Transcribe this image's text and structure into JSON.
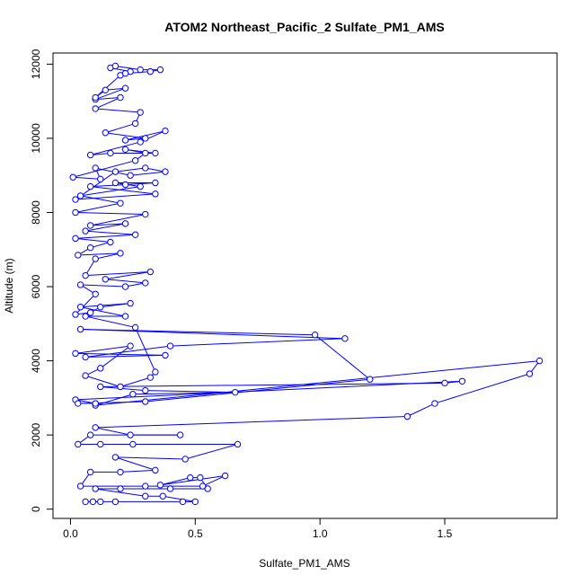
{
  "chart_data": {
    "type": "line",
    "title": "ATOM2 Northeast_Pacific_2 Sulfate_PM1_AMS",
    "xlabel": "Sulfate_PM1_AMS",
    "ylabel": "Altitude (m)",
    "xlim": [
      -0.07,
      1.95
    ],
    "ylim": [
      -250,
      12300
    ],
    "x_ticks": [
      0.0,
      0.5,
      1.0,
      1.5
    ],
    "x_tick_labels": [
      "0.0",
      "0.5",
      "1.0",
      "1.5"
    ],
    "y_ticks": [
      0,
      2000,
      4000,
      6000,
      8000,
      10000,
      12000
    ],
    "y_tick_labels": [
      "0",
      "2000",
      "4000",
      "6000",
      "8000",
      "10000",
      "12000"
    ],
    "grid": false,
    "colors": {
      "series": "#0000ff",
      "axes": "#000000",
      "background": "#ffffff"
    },
    "series": [
      {
        "marker": "open-circle",
        "line": true,
        "points": [
          [
            0.06,
            200
          ],
          [
            0.09,
            200
          ],
          [
            0.12,
            200
          ],
          [
            0.18,
            200
          ],
          [
            0.45,
            200
          ],
          [
            0.5,
            200
          ],
          [
            0.37,
            350
          ],
          [
            0.3,
            350
          ],
          [
            0.1,
            550
          ],
          [
            0.2,
            550
          ],
          [
            0.4,
            550
          ],
          [
            0.55,
            550
          ],
          [
            0.52,
            850
          ],
          [
            0.48,
            850
          ],
          [
            0.36,
            650
          ],
          [
            0.62,
            900
          ],
          [
            0.53,
            620
          ],
          [
            0.3,
            620
          ],
          [
            0.04,
            620
          ],
          [
            0.08,
            1000
          ],
          [
            0.2,
            1000
          ],
          [
            0.34,
            1050
          ],
          [
            0.18,
            1400
          ],
          [
            0.46,
            1350
          ],
          [
            0.67,
            1750
          ],
          [
            0.25,
            1750
          ],
          [
            0.12,
            1750
          ],
          [
            0.03,
            1750
          ],
          [
            0.08,
            2000
          ],
          [
            0.44,
            2000
          ],
          [
            0.24,
            2000
          ],
          [
            0.1,
            2200
          ],
          [
            1.35,
            2500
          ],
          [
            1.46,
            2850
          ],
          [
            1.84,
            3650
          ],
          [
            1.88,
            4000
          ],
          [
            0.1,
            2800
          ],
          [
            0.25,
            3100
          ],
          [
            0.66,
            3150
          ],
          [
            0.3,
            3200
          ],
          [
            0.12,
            3300
          ],
          [
            1.5,
            3400
          ],
          [
            1.57,
            3450
          ],
          [
            0.02,
            2950
          ],
          [
            0.1,
            2850
          ],
          [
            0.03,
            2850
          ],
          [
            0.3,
            2900
          ],
          [
            1.2,
            3500
          ],
          [
            0.98,
            4700
          ],
          [
            0.04,
            4850
          ],
          [
            1.1,
            4600
          ],
          [
            0.4,
            4400
          ],
          [
            0.06,
            4100
          ],
          [
            0.38,
            4150
          ],
          [
            0.02,
            4200
          ],
          [
            0.24,
            4400
          ],
          [
            0.12,
            3800
          ],
          [
            0.06,
            3600
          ],
          [
            0.2,
            3300
          ],
          [
            0.32,
            3550
          ],
          [
            0.34,
            3700
          ],
          [
            0.26,
            4900
          ],
          [
            0.06,
            5200
          ],
          [
            0.22,
            5200
          ],
          [
            0.04,
            5450
          ],
          [
            0.24,
            5550
          ],
          [
            0.12,
            5450
          ],
          [
            0.08,
            5300
          ],
          [
            0.02,
            5250
          ],
          [
            0.1,
            5800
          ],
          [
            0.04,
            6050
          ],
          [
            0.22,
            6000
          ],
          [
            0.3,
            6100
          ],
          [
            0.14,
            6200
          ],
          [
            0.32,
            6400
          ],
          [
            0.06,
            6300
          ],
          [
            0.1,
            6750
          ],
          [
            0.2,
            6900
          ],
          [
            0.03,
            6850
          ],
          [
            0.08,
            7050
          ],
          [
            0.16,
            7200
          ],
          [
            0.02,
            7300
          ],
          [
            0.26,
            7400
          ],
          [
            0.06,
            7500
          ],
          [
            0.22,
            7700
          ],
          [
            0.08,
            7650
          ],
          [
            0.3,
            7950
          ],
          [
            0.02,
            8000
          ],
          [
            0.2,
            8250
          ],
          [
            0.04,
            8450
          ],
          [
            0.28,
            8700
          ],
          [
            0.18,
            8800
          ],
          [
            0.34,
            8800
          ],
          [
            0.22,
            8750
          ],
          [
            0.08,
            8700
          ],
          [
            0.34,
            8500
          ],
          [
            0.02,
            8350
          ],
          [
            0.18,
            9100
          ],
          [
            0.3,
            9200
          ],
          [
            0.38,
            9100
          ],
          [
            0.24,
            9000
          ],
          [
            0.1,
            9200
          ],
          [
            0.12,
            8900
          ],
          [
            0.01,
            8950
          ],
          [
            0.26,
            9400
          ],
          [
            0.3,
            9600
          ],
          [
            0.22,
            9700
          ],
          [
            0.34,
            9600
          ],
          [
            0.16,
            9600
          ],
          [
            0.08,
            9550
          ],
          [
            0.28,
            9900
          ],
          [
            0.38,
            10200
          ],
          [
            0.22,
            9950
          ],
          [
            0.3,
            10000
          ],
          [
            0.14,
            10150
          ],
          [
            0.26,
            10400
          ],
          [
            0.28,
            10700
          ],
          [
            0.1,
            10800
          ],
          [
            0.2,
            11100
          ],
          [
            0.1,
            11050
          ],
          [
            0.22,
            11350
          ],
          [
            0.14,
            11300
          ],
          [
            0.1,
            11100
          ],
          [
            0.2,
            11700
          ],
          [
            0.24,
            11800
          ],
          [
            0.16,
            11900
          ],
          [
            0.18,
            11950
          ],
          [
            0.28,
            11850
          ],
          [
            0.36,
            11850
          ],
          [
            0.32,
            11800
          ],
          [
            0.22,
            11750
          ]
        ]
      }
    ]
  }
}
